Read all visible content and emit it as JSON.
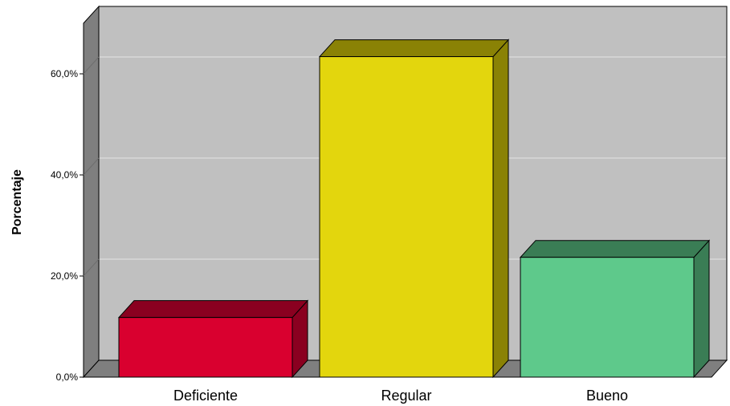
{
  "chart_data": {
    "type": "bar",
    "title": "",
    "xlabel": "",
    "ylabel": "Porcentaje",
    "categories": [
      "Deficiente",
      "Regular",
      "Bueno"
    ],
    "values": [
      11.8,
      63.4,
      23.7
    ],
    "ylim": [
      0,
      70
    ],
    "yticks": [
      0,
      20,
      40,
      60
    ],
    "ytick_labels": [
      "0,0%",
      "20,0%",
      "40,0%",
      "60,0%"
    ],
    "grid": true,
    "legend": "none",
    "colors": {
      "bars": [
        "#d9002f",
        "#e3d60d",
        "#5ec98b"
      ],
      "bar_tops": [
        "#8a0020",
        "#8a8205",
        "#3a7d55"
      ],
      "bar_sides": [
        "#8a0020",
        "#8a8205",
        "#3a7d55"
      ],
      "plot_background": "#c0c0c0",
      "side_wall": "#7f7f7f",
      "floor": "#7f7f7f",
      "gridline": "#d8d8d8"
    }
  }
}
